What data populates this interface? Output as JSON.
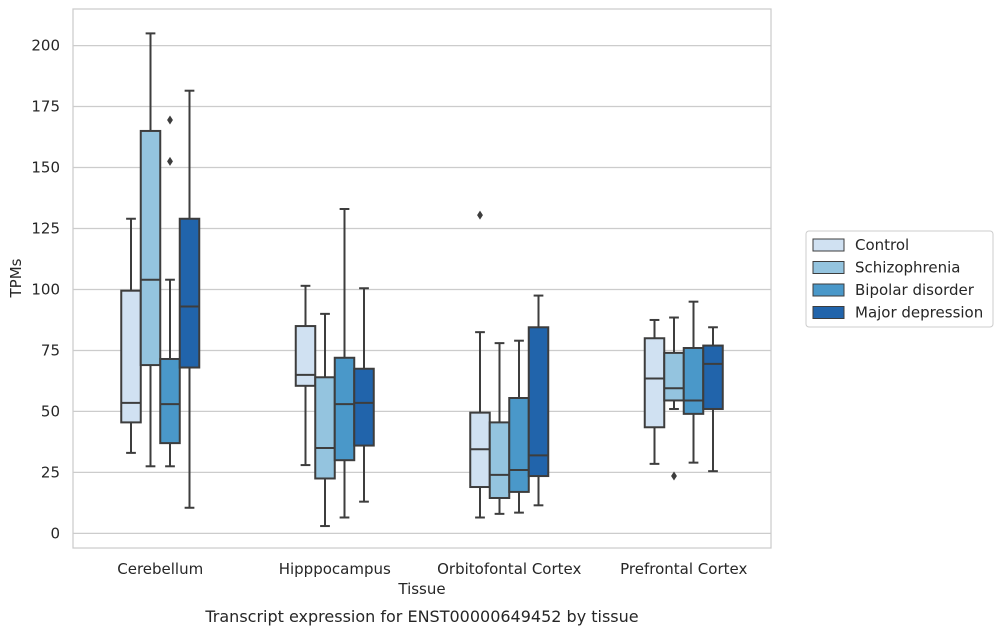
{
  "chart_data": {
    "type": "box",
    "title": "",
    "caption": "Transcript expression for ENST00000649452 by tissue",
    "xlabel": "Tissue",
    "ylabel": "TPMs",
    "ylim": [
      -6,
      215
    ],
    "yticks": [
      0,
      25,
      50,
      75,
      100,
      125,
      150,
      175,
      200
    ],
    "grid": "horizontal",
    "legend_position": "right",
    "categories": [
      "Cerebellum",
      "Hipppocampus",
      "Orbitofontal Cortex",
      "Prefrontal Cortex"
    ],
    "series": [
      {
        "name": "Control",
        "color": "#d0e1f2",
        "boxes": [
          {
            "whisker_low": 33,
            "q1": 45.5,
            "median": 53.5,
            "q3": 99.5,
            "whisker_high": 129,
            "outliers": []
          },
          {
            "whisker_low": 28,
            "q1": 60.5,
            "median": 65,
            "q3": 85,
            "whisker_high": 101.5,
            "outliers": []
          },
          {
            "whisker_low": 6.5,
            "q1": 19,
            "median": 34.5,
            "q3": 49.5,
            "whisker_high": 82.5,
            "outliers": [
              130.5
            ]
          },
          {
            "whisker_low": 28.5,
            "q1": 43.5,
            "median": 63.5,
            "q3": 80,
            "whisker_high": 87.5,
            "outliers": []
          }
        ]
      },
      {
        "name": "Schizophrenia",
        "color": "#94c4df",
        "boxes": [
          {
            "whisker_low": 27.5,
            "q1": 69,
            "median": 104,
            "q3": 165,
            "whisker_high": 205,
            "outliers": []
          },
          {
            "whisker_low": 3,
            "q1": 22.5,
            "median": 35,
            "q3": 64,
            "whisker_high": 90,
            "outliers": []
          },
          {
            "whisker_low": 8,
            "q1": 14.5,
            "median": 24,
            "q3": 45.5,
            "whisker_high": 78,
            "outliers": []
          },
          {
            "whisker_low": 51,
            "q1": 54.5,
            "median": 59.5,
            "q3": 74,
            "whisker_high": 88.5,
            "outliers": [
              23.5
            ]
          }
        ]
      },
      {
        "name": "Bipolar disorder",
        "color": "#4a98c9",
        "boxes": [
          {
            "whisker_low": 27.5,
            "q1": 37,
            "median": 53,
            "q3": 71.5,
            "whisker_high": 104,
            "outliers": [
              169.5,
              152.5
            ]
          },
          {
            "whisker_low": 6.5,
            "q1": 30,
            "median": 53,
            "q3": 72,
            "whisker_high": 133,
            "outliers": []
          },
          {
            "whisker_low": 8.5,
            "q1": 17,
            "median": 26,
            "q3": 55.5,
            "whisker_high": 79,
            "outliers": []
          },
          {
            "whisker_low": 29,
            "q1": 49,
            "median": 54.5,
            "q3": 76,
            "whisker_high": 95,
            "outliers": []
          }
        ]
      },
      {
        "name": "Major depression",
        "color": "#2164ab",
        "boxes": [
          {
            "whisker_low": 10.5,
            "q1": 68,
            "median": 93,
            "q3": 129,
            "whisker_high": 181.5,
            "outliers": []
          },
          {
            "whisker_low": 13,
            "q1": 36,
            "median": 53.5,
            "q3": 67.5,
            "whisker_high": 100.5,
            "outliers": []
          },
          {
            "whisker_low": 11.5,
            "q1": 23.5,
            "median": 32,
            "q3": 84.5,
            "whisker_high": 97.5,
            "outliers": []
          },
          {
            "whisker_low": 25.5,
            "q1": 51,
            "median": 69.5,
            "q3": 77,
            "whisker_high": 84.5,
            "outliers": []
          }
        ]
      }
    ]
  }
}
